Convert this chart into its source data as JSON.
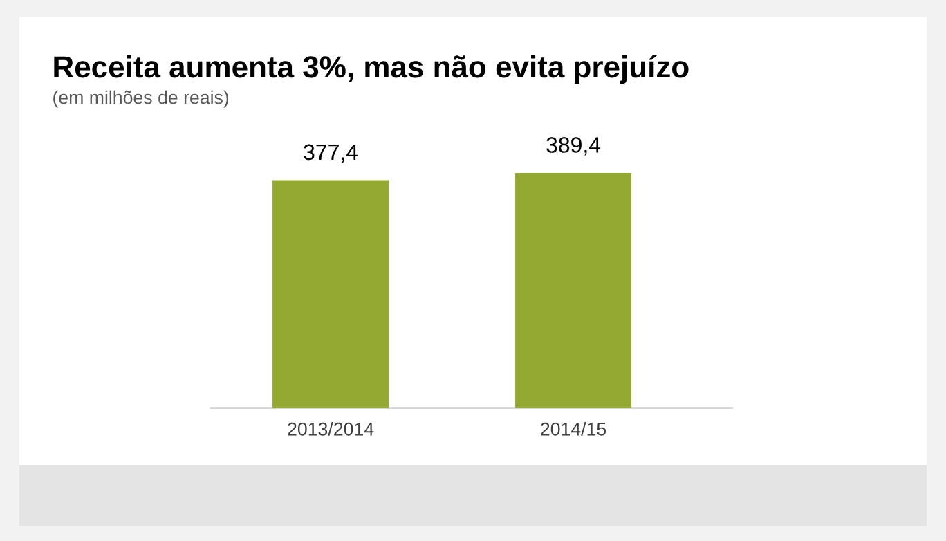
{
  "chart_data": {
    "type": "bar",
    "title": "Receita aumenta 3%, mas não evita prejuízo",
    "subtitle": "(em milhões de reais)",
    "categories": [
      "2013/2014",
      "2014/15"
    ],
    "values": [
      377.4,
      389.4
    ],
    "value_labels": [
      "377,4",
      "389,4"
    ],
    "color": "#93a92f"
  }
}
